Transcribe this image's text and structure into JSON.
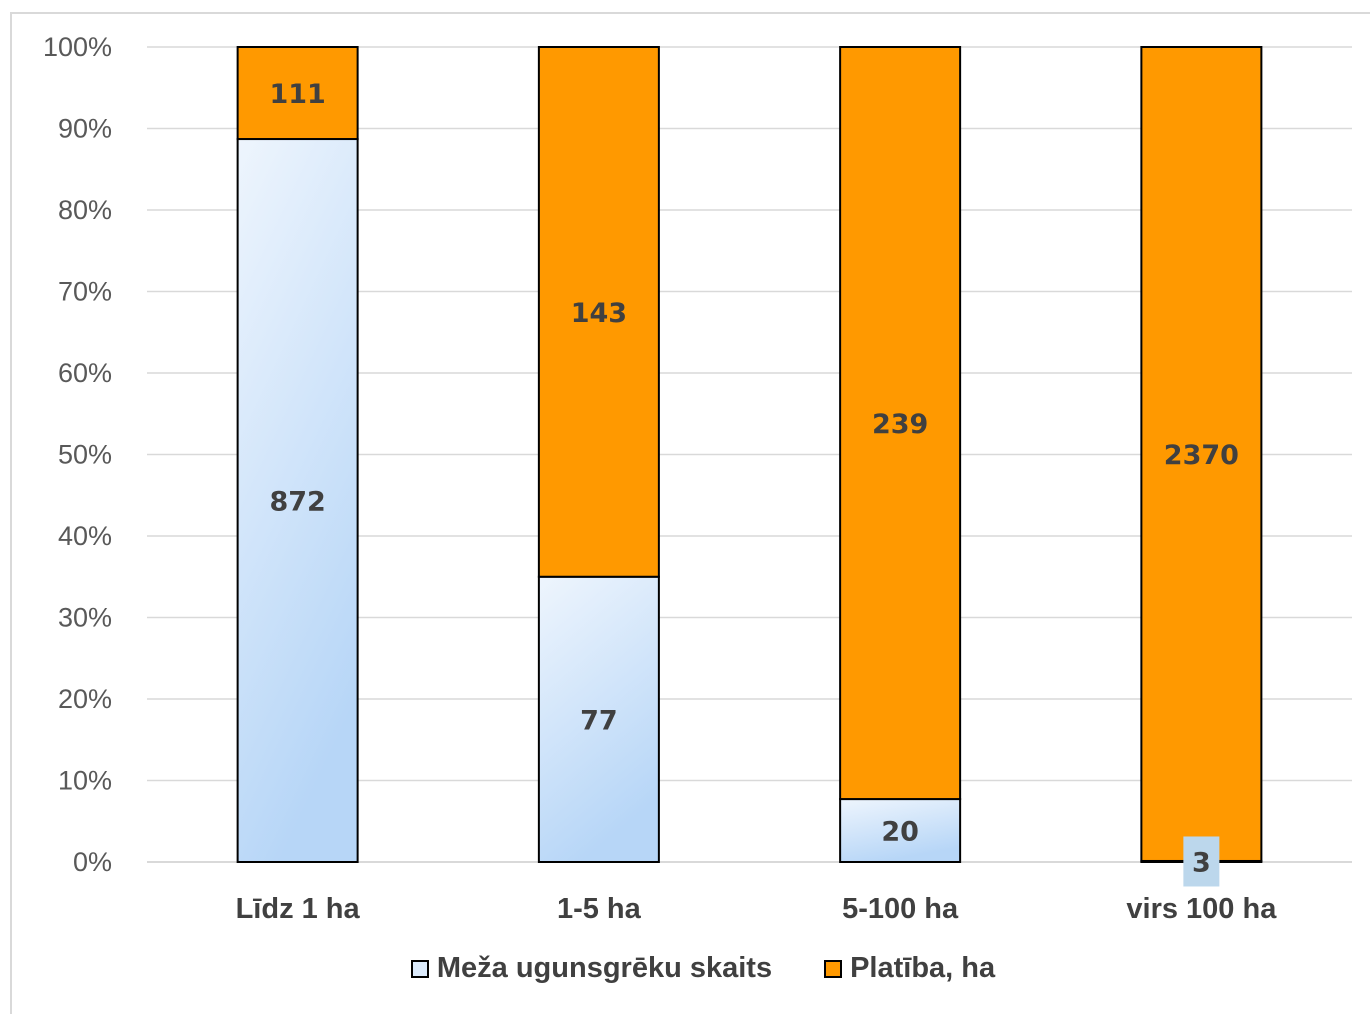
{
  "chart_data": {
    "type": "bar",
    "stacked": "percent",
    "categories": [
      "Līdz 1 ha",
      "1-5 ha",
      "5-100 ha",
      "virs 100 ha"
    ],
    "series": [
      {
        "name": "Meža ugunsgrēku skaits",
        "values": [
          872,
          77,
          20,
          3
        ],
        "color": "#cfe3fa"
      },
      {
        "name": "Platība, ha",
        "values": [
          111,
          143,
          239,
          2370
        ],
        "color": "#ff9900"
      }
    ],
    "yticks": [
      "0%",
      "10%",
      "20%",
      "30%",
      "40%",
      "50%",
      "60%",
      "70%",
      "80%",
      "90%",
      "100%"
    ],
    "ylim": [
      0,
      100
    ],
    "grid": true,
    "legend": "bottom"
  }
}
